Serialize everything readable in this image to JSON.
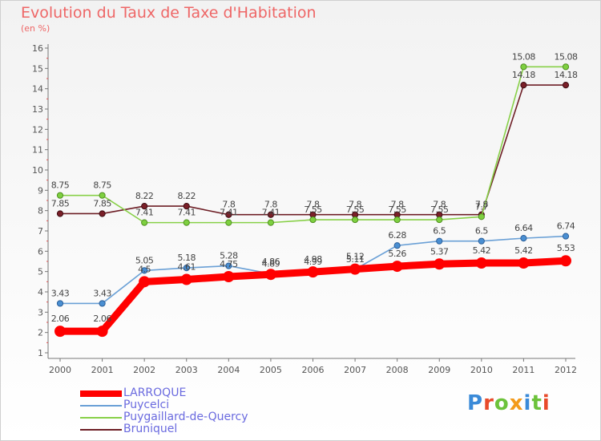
{
  "title": "Evolution du Taux de Taxe d'Habitation",
  "subtitle": "(en %)",
  "brand": "Proxiti",
  "chart_data": {
    "type": "line",
    "x": [
      "2000",
      "2001",
      "2002",
      "2003",
      "2004",
      "2005",
      "2006",
      "2007",
      "2008",
      "2009",
      "2010",
      "2011",
      "2012"
    ],
    "ylim": [
      1,
      16
    ],
    "yticks": [
      1,
      2,
      3,
      4,
      5,
      6,
      7,
      8,
      9,
      10,
      11,
      12,
      13,
      14,
      15,
      16
    ],
    "grid": false,
    "legend_position": "bottom-left",
    "series": [
      {
        "name": "LARROQUE",
        "color": "#ff0000",
        "values": [
          2.06,
          2.06,
          4.5,
          4.61,
          4.75,
          4.86,
          4.98,
          5.12,
          5.26,
          5.37,
          5.42,
          5.42,
          5.53
        ],
        "labels": [
          "2.06",
          "2.06",
          "4.5",
          "4.61",
          "4.75",
          "4.86",
          "4.98",
          "5.12",
          "5.26",
          "5.37",
          "5.42",
          "5.42",
          "5.53"
        ]
      },
      {
        "name": "Puycelci",
        "color": "#6aa0d6",
        "values": [
          3.43,
          3.43,
          5.05,
          5.18,
          5.28,
          4.89,
          4.99,
          5.11,
          6.28,
          6.5,
          6.5,
          6.64,
          6.74
        ],
        "labels": [
          "3.43",
          "3.43",
          "5.05",
          "5.18",
          "5.28",
          "4.89",
          "4.99",
          "5.11",
          "6.28",
          "6.5",
          "6.5",
          "6.64",
          "6.74"
        ]
      },
      {
        "name": "Puygaillard-de-Quercy",
        "color": "#88d048",
        "values": [
          8.75,
          8.75,
          7.41,
          7.41,
          7.41,
          7.41,
          7.55,
          7.55,
          7.55,
          7.55,
          7.7,
          15.08,
          15.08
        ],
        "labels": [
          "8.75",
          "8.75",
          "7.41",
          "7.41",
          "7.41",
          "7.41",
          "7.55",
          "7.55",
          "7.55",
          "7.55",
          "7.7",
          "15.08",
          "15.08"
        ]
      },
      {
        "name": "Bruniquel",
        "color": "#6e1f26",
        "values": [
          7.85,
          7.85,
          8.22,
          8.22,
          7.8,
          7.8,
          7.8,
          7.8,
          7.8,
          7.8,
          7.8,
          14.18,
          14.18
        ],
        "labels": [
          "7.85",
          "7.85",
          "8.22",
          "8.22",
          "7.8",
          "7.8",
          "7.8",
          "7.8",
          "7.8",
          "7.8",
          "7.8",
          "14.18",
          "14.18"
        ]
      }
    ]
  }
}
